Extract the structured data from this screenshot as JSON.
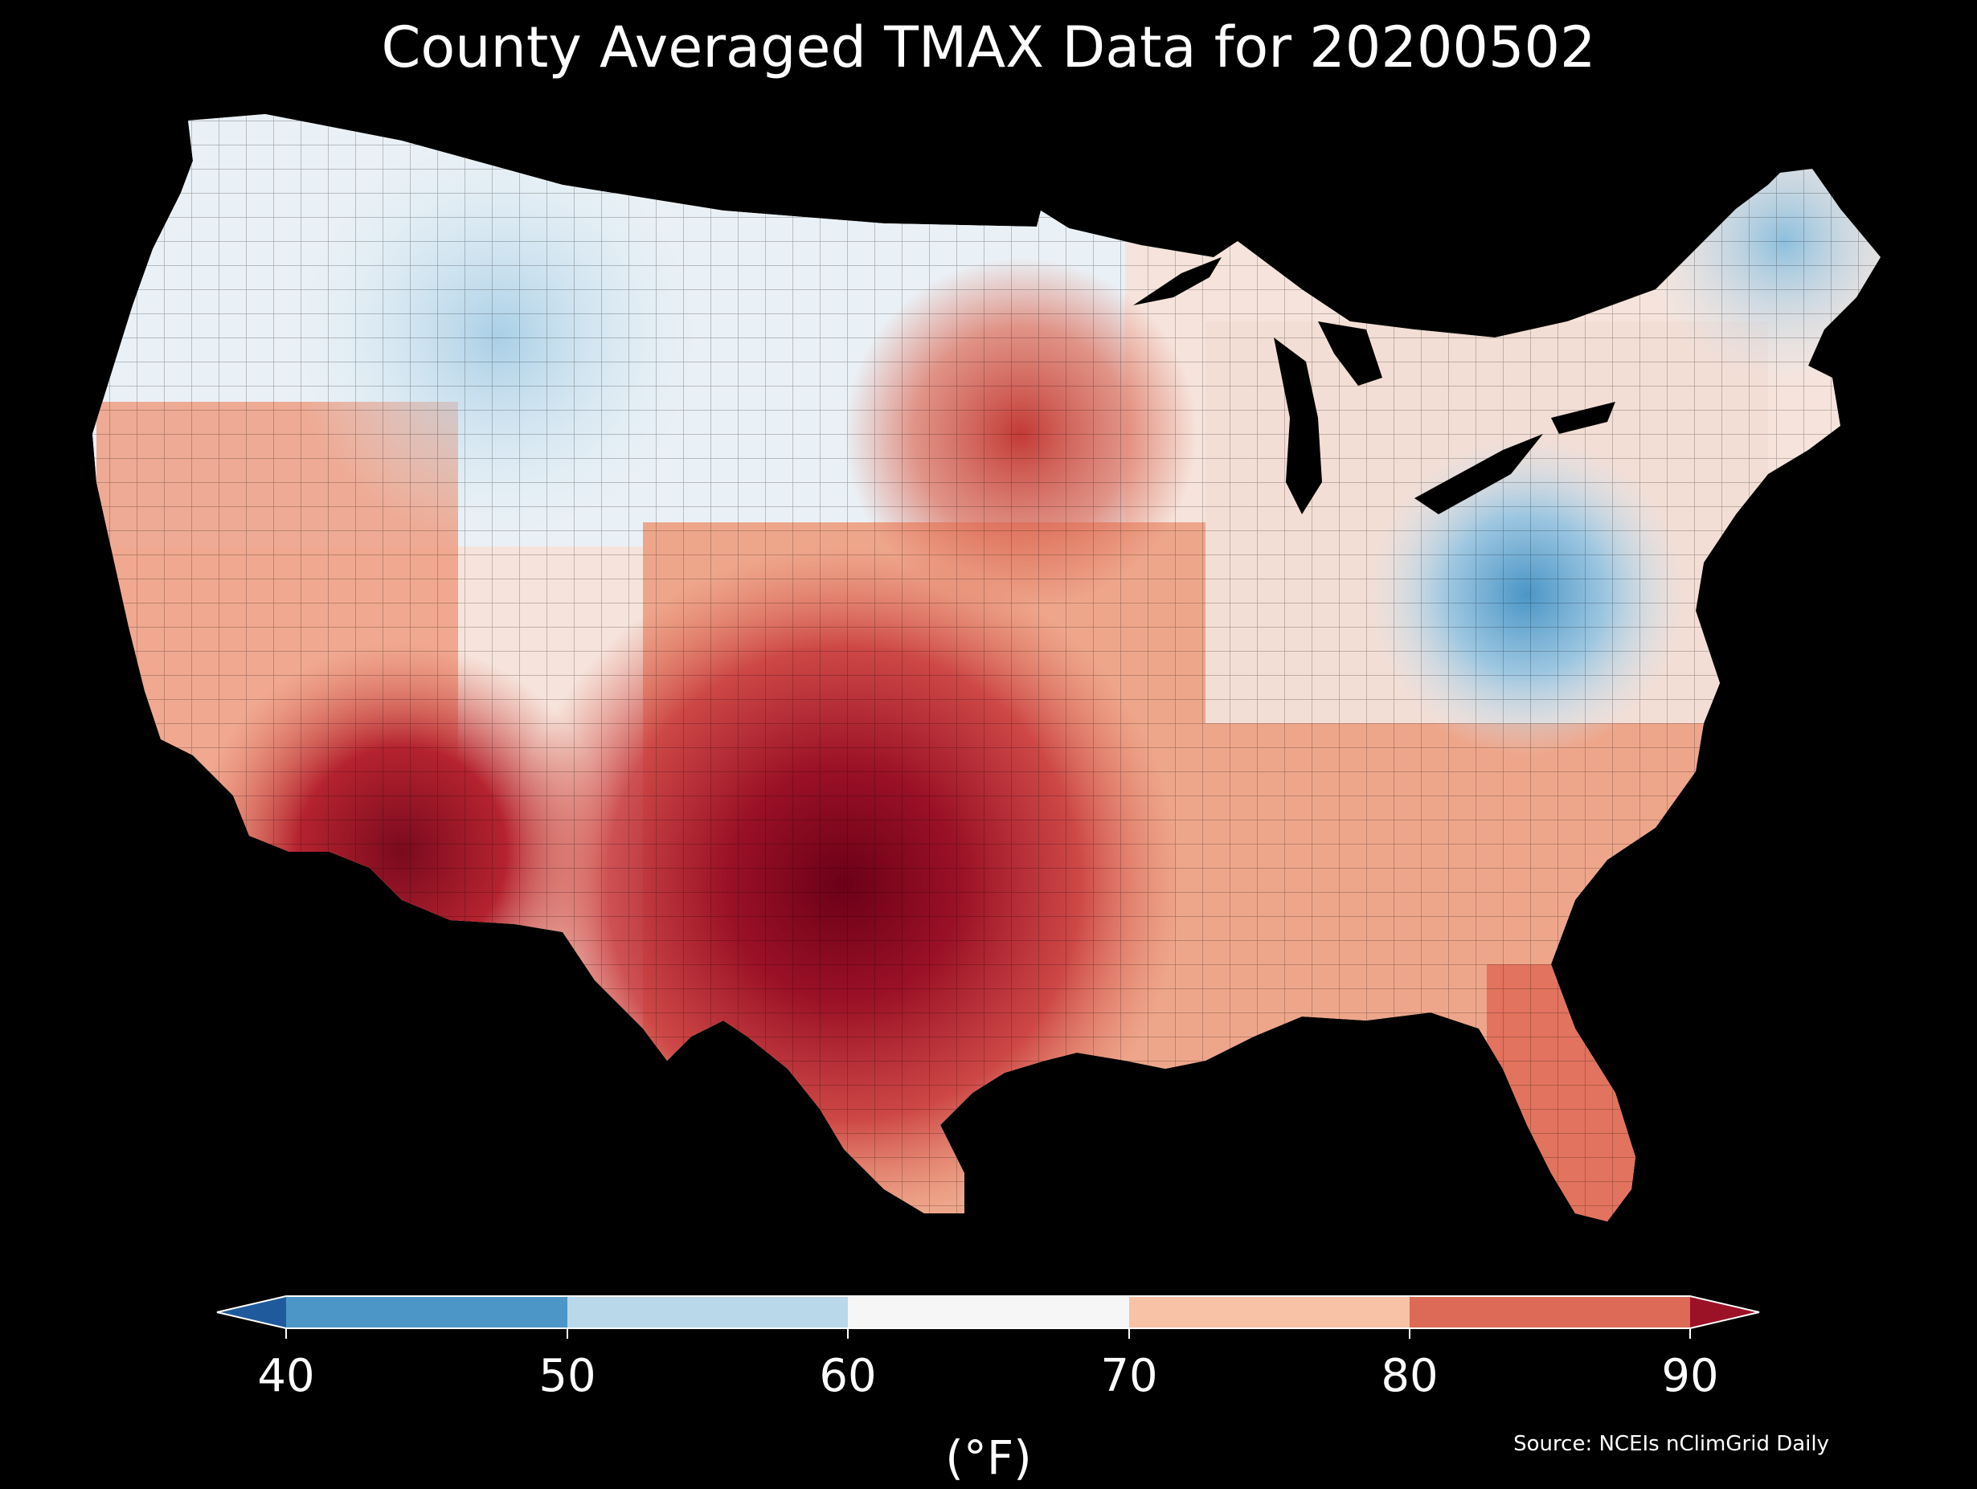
{
  "title": "County Averaged TMAX Data for 20200502",
  "source": "Source: NCEIs nClimGrid Daily",
  "colorbar": {
    "units": "(°F)",
    "ticks": [
      "40",
      "50",
      "60",
      "70",
      "80",
      "90"
    ],
    "bins": [
      {
        "range": "<40",
        "color": "#1f5a9c"
      },
      {
        "range": "40-50",
        "color": "#4b96c7"
      },
      {
        "range": "50-60",
        "color": "#b9d9ea"
      },
      {
        "range": "60-70",
        "color": "#f6f6f6"
      },
      {
        "range": "70-80",
        "color": "#f8c2a6"
      },
      {
        "range": "80-90",
        "color": "#dc6a56"
      },
      {
        "range": ">90",
        "color": "#9b1126"
      }
    ],
    "extend": "both"
  },
  "map": {
    "region": "Contiguous United States",
    "variable": "TMAX",
    "date": "20200502",
    "background": "#000000"
  }
}
